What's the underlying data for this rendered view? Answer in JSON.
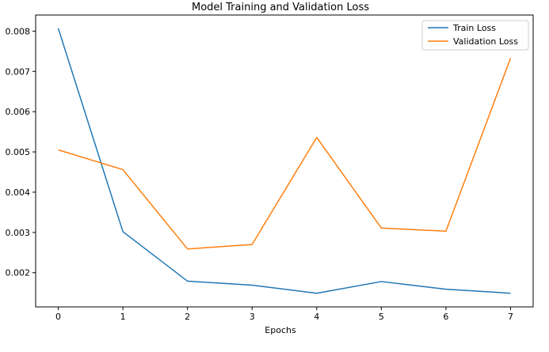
{
  "chart_data": {
    "type": "line",
    "title": "Model Training and Validation Loss",
    "xlabel": "Epochs",
    "ylabel": "",
    "x": [
      0,
      1,
      2,
      3,
      4,
      5,
      6,
      7
    ],
    "xticks": [
      "0",
      "1",
      "2",
      "3",
      "4",
      "5",
      "6",
      "7"
    ],
    "xlim": [
      -0.35,
      7.35
    ],
    "yticks": [
      0.002,
      0.003,
      0.004,
      0.005,
      0.006,
      0.007,
      0.008
    ],
    "ytick_labels": [
      "0.002",
      "0.003",
      "0.004",
      "0.005",
      "0.006",
      "0.007",
      "0.008"
    ],
    "ylim": [
      0.00115,
      0.0084
    ],
    "grid": false,
    "legend_position": "top-right",
    "series": [
      {
        "name": "Train Loss",
        "color": "#1f77b4",
        "values": [
          0.00807,
          0.00302,
          0.00179,
          0.00169,
          0.00149,
          0.00178,
          0.00159,
          0.00149
        ]
      },
      {
        "name": "Validation Loss",
        "color": "#ff7f0e",
        "values": [
          0.00505,
          0.00456,
          0.00259,
          0.0027,
          0.00536,
          0.00311,
          0.00303,
          0.00733
        ]
      }
    ]
  }
}
